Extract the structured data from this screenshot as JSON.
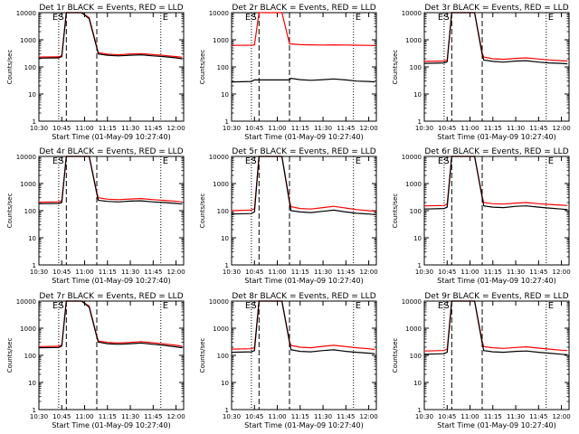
{
  "colors": {
    "events": "#000000",
    "lld": "#ff0000",
    "axes": "#000000",
    "background": "#ffffff"
  },
  "common": {
    "ylabel": "Counts/sec",
    "xlabel": "Start Time (01-May-09 10:27:40)",
    "x_ticks": [
      "10:30",
      "10:45",
      "11:00",
      "11:15",
      "11:30",
      "11:45",
      "12:00"
    ],
    "y_ticks": [
      "1",
      "10",
      "100",
      "1000",
      "10000"
    ],
    "markers": {
      "E_left": "E",
      "S": "S",
      "E_right": "E"
    }
  },
  "chart_data": [
    {
      "type": "line",
      "title": "Det 1r BLACK = Events, RED = LLD",
      "xlim": [
        "10:30",
        "12:05"
      ],
      "ylim": [
        1,
        10000
      ],
      "yscale": "log",
      "vertical_lines": {
        "dotted": [
          "10:43",
          "11:50"
        ],
        "dashed": [
          "10:48",
          "11:08"
        ]
      },
      "x": [
        "10:30",
        "10:43",
        "10:45",
        "10:48",
        "10:52",
        "10:58",
        "11:03",
        "11:08",
        "11:09",
        "11:15",
        "11:22",
        "11:30",
        "11:37",
        "11:45",
        "11:52",
        "12:00",
        "12:04"
      ],
      "series": [
        {
          "name": "BLACK",
          "values": [
            210,
            215,
            240,
            10000,
            10000,
            10000,
            6000,
            500,
            300,
            270,
            255,
            270,
            280,
            255,
            240,
            215,
            200
          ]
        },
        {
          "name": "RED",
          "values": [
            230,
            235,
            260,
            10000,
            10000,
            10000,
            6500,
            550,
            330,
            295,
            280,
            300,
            310,
            285,
            265,
            240,
            225
          ]
        }
      ]
    },
    {
      "type": "line",
      "title": "Det 2r BLACK = Events, RED = LLD",
      "xlim": [
        "10:30",
        "12:05"
      ],
      "ylim": [
        1,
        10000
      ],
      "yscale": "log",
      "vertical_lines": {
        "dotted": [
          "10:43",
          "11:50"
        ],
        "dashed": [
          "10:48",
          "11:08"
        ]
      },
      "x": [
        "10:30",
        "10:43",
        "10:45",
        "10:48",
        "10:52",
        "10:58",
        "11:03",
        "11:08",
        "11:09",
        "11:15",
        "11:22",
        "11:30",
        "11:37",
        "11:45",
        "11:52",
        "12:00",
        "12:04"
      ],
      "series": [
        {
          "name": "BLACK",
          "values": [
            28,
            29,
            33,
            33,
            33,
            33,
            33,
            33,
            38,
            34,
            32,
            34,
            36,
            33,
            30,
            29,
            28
          ]
        },
        {
          "name": "RED",
          "values": [
            620,
            630,
            650,
            10000,
            10000,
            10000,
            10000,
            720,
            700,
            660,
            650,
            640,
            650,
            640,
            630,
            620,
            610
          ]
        }
      ]
    },
    {
      "type": "line",
      "title": "Det 3r BLACK = Events, RED = LLD",
      "xlim": [
        "10:30",
        "12:05"
      ],
      "ylim": [
        1,
        10000
      ],
      "yscale": "log",
      "vertical_lines": {
        "dotted": [
          "10:43",
          "11:50"
        ],
        "dashed": [
          "10:48",
          "11:08"
        ]
      },
      "x": [
        "10:30",
        "10:43",
        "10:45",
        "10:48",
        "10:52",
        "10:58",
        "11:03",
        "11:08",
        "11:09",
        "11:15",
        "11:22",
        "11:30",
        "11:37",
        "11:45",
        "11:52",
        "12:00",
        "12:04"
      ],
      "series": [
        {
          "name": "BLACK",
          "values": [
            135,
            140,
            155,
            10000,
            10000,
            10000,
            10000,
            280,
            180,
            160,
            150,
            165,
            170,
            150,
            140,
            135,
            130
          ]
        },
        {
          "name": "RED",
          "values": [
            160,
            165,
            180,
            10000,
            10000,
            10000,
            10000,
            330,
            230,
            200,
            190,
            205,
            215,
            195,
            180,
            170,
            165
          ]
        }
      ]
    },
    {
      "type": "line",
      "title": "Det 4r BLACK = Events, RED = LLD",
      "xlim": [
        "10:30",
        "12:05"
      ],
      "ylim": [
        1,
        10000
      ],
      "yscale": "log",
      "vertical_lines": {
        "dotted": [
          "10:43",
          "11:50"
        ],
        "dashed": [
          "10:48",
          "11:08"
        ]
      },
      "x": [
        "10:30",
        "10:43",
        "10:45",
        "10:48",
        "10:52",
        "10:58",
        "11:03",
        "11:08",
        "11:09",
        "11:15",
        "11:22",
        "11:30",
        "11:37",
        "11:45",
        "11:52",
        "12:00",
        "12:04"
      ],
      "series": [
        {
          "name": "BLACK",
          "values": [
            180,
            185,
            200,
            10000,
            10000,
            10000,
            10000,
            420,
            240,
            220,
            210,
            225,
            230,
            210,
            200,
            185,
            175
          ]
        },
        {
          "name": "RED",
          "values": [
            205,
            210,
            230,
            10000,
            10000,
            10000,
            10000,
            480,
            300,
            265,
            255,
            270,
            280,
            255,
            240,
            220,
            210
          ]
        }
      ]
    },
    {
      "type": "line",
      "title": "Det 5r BLACK = Events, RED = LLD",
      "xlim": [
        "10:30",
        "12:05"
      ],
      "ylim": [
        1,
        10000
      ],
      "yscale": "log",
      "vertical_lines": {
        "dotted": [
          "10:43",
          "11:50"
        ],
        "dashed": [
          "10:48",
          "11:08"
        ]
      },
      "x": [
        "10:30",
        "10:43",
        "10:45",
        "10:48",
        "10:52",
        "10:58",
        "11:03",
        "11:08",
        "11:09",
        "11:15",
        "11:22",
        "11:30",
        "11:37",
        "11:45",
        "11:52",
        "12:00",
        "12:04"
      ],
      "series": [
        {
          "name": "BLACK",
          "values": [
            75,
            78,
            90,
            10000,
            10000,
            10000,
            10000,
            200,
            100,
            90,
            85,
            95,
            105,
            90,
            80,
            75,
            72
          ]
        },
        {
          "name": "RED",
          "values": [
            100,
            105,
            120,
            10000,
            10000,
            10000,
            10000,
            230,
            140,
            120,
            115,
            130,
            145,
            125,
            110,
            100,
            95
          ]
        }
      ]
    },
    {
      "type": "line",
      "title": "Det 6r BLACK = Events, RED = LLD",
      "xlim": [
        "10:30",
        "12:05"
      ],
      "ylim": [
        1,
        10000
      ],
      "yscale": "log",
      "vertical_lines": {
        "dotted": [
          "10:43",
          "11:50"
        ],
        "dashed": [
          "10:48",
          "11:08"
        ]
      },
      "x": [
        "10:30",
        "10:43",
        "10:45",
        "10:48",
        "10:52",
        "10:58",
        "11:03",
        "11:08",
        "11:09",
        "11:15",
        "11:22",
        "11:30",
        "11:37",
        "11:45",
        "11:52",
        "12:00",
        "12:04"
      ],
      "series": [
        {
          "name": "BLACK",
          "values": [
            115,
            120,
            135,
            10000,
            10000,
            10000,
            10000,
            300,
            150,
            135,
            130,
            145,
            150,
            135,
            125,
            115,
            110
          ]
        },
        {
          "name": "RED",
          "values": [
            150,
            155,
            175,
            10000,
            10000,
            10000,
            10000,
            340,
            200,
            180,
            175,
            190,
            200,
            180,
            170,
            160,
            155
          ]
        }
      ]
    },
    {
      "type": "line",
      "title": "Det 7r BLACK = Events, RED = LLD",
      "xlim": [
        "10:30",
        "12:05"
      ],
      "ylim": [
        1,
        10000
      ],
      "yscale": "log",
      "vertical_lines": {
        "dotted": [
          "10:43",
          "11:50"
        ],
        "dashed": [
          "10:48",
          "11:08"
        ]
      },
      "x": [
        "10:30",
        "10:43",
        "10:45",
        "10:48",
        "10:52",
        "10:58",
        "11:03",
        "11:08",
        "11:09",
        "11:15",
        "11:22",
        "11:30",
        "11:37",
        "11:45",
        "11:52",
        "12:00",
        "12:04"
      ],
      "series": [
        {
          "name": "BLACK",
          "values": [
            190,
            195,
            220,
            10000,
            10000,
            10000,
            6000,
            480,
            310,
            270,
            255,
            270,
            285,
            255,
            235,
            205,
            190
          ]
        },
        {
          "name": "RED",
          "values": [
            210,
            215,
            240,
            10000,
            10000,
            10000,
            6500,
            520,
            340,
            300,
            285,
            300,
            320,
            290,
            265,
            235,
            215
          ]
        }
      ]
    },
    {
      "type": "line",
      "title": "Det 8r BLACK = Events, RED = LLD",
      "xlim": [
        "10:30",
        "12:05"
      ],
      "ylim": [
        1,
        10000
      ],
      "yscale": "log",
      "vertical_lines": {
        "dotted": [
          "10:43",
          "11:50"
        ],
        "dashed": [
          "10:48",
          "11:08"
        ]
      },
      "x": [
        "10:30",
        "10:43",
        "10:45",
        "10:48",
        "10:52",
        "10:58",
        "11:03",
        "11:08",
        "11:09",
        "11:15",
        "11:22",
        "11:30",
        "11:37",
        "11:45",
        "11:52",
        "12:00",
        "12:04"
      ],
      "series": [
        {
          "name": "BLACK",
          "values": [
            130,
            135,
            150,
            10000,
            10000,
            10000,
            10000,
            300,
            160,
            140,
            135,
            150,
            160,
            140,
            130,
            120,
            115
          ]
        },
        {
          "name": "RED",
          "values": [
            170,
            175,
            190,
            10000,
            10000,
            10000,
            10000,
            330,
            230,
            200,
            190,
            215,
            235,
            210,
            190,
            175,
            165
          ]
        }
      ]
    },
    {
      "type": "line",
      "title": "Det 9r BLACK = Events, RED = LLD",
      "xlim": [
        "10:30",
        "12:05"
      ],
      "ylim": [
        1,
        10000
      ],
      "yscale": "log",
      "vertical_lines": {
        "dotted": [
          "10:43",
          "11:50"
        ],
        "dashed": [
          "10:48",
          "11:08"
        ]
      },
      "x": [
        "10:30",
        "10:43",
        "10:45",
        "10:48",
        "10:52",
        "10:58",
        "11:03",
        "11:08",
        "11:09",
        "11:15",
        "11:22",
        "11:30",
        "11:37",
        "11:45",
        "11:52",
        "12:00",
        "12:04"
      ],
      "series": [
        {
          "name": "BLACK",
          "values": [
            110,
            115,
            130,
            10000,
            10000,
            10000,
            10000,
            280,
            150,
            135,
            130,
            140,
            145,
            130,
            120,
            110,
            105
          ]
        },
        {
          "name": "RED",
          "values": [
            145,
            150,
            170,
            10000,
            10000,
            10000,
            10000,
            330,
            210,
            190,
            180,
            195,
            205,
            185,
            170,
            155,
            150
          ]
        }
      ]
    }
  ]
}
